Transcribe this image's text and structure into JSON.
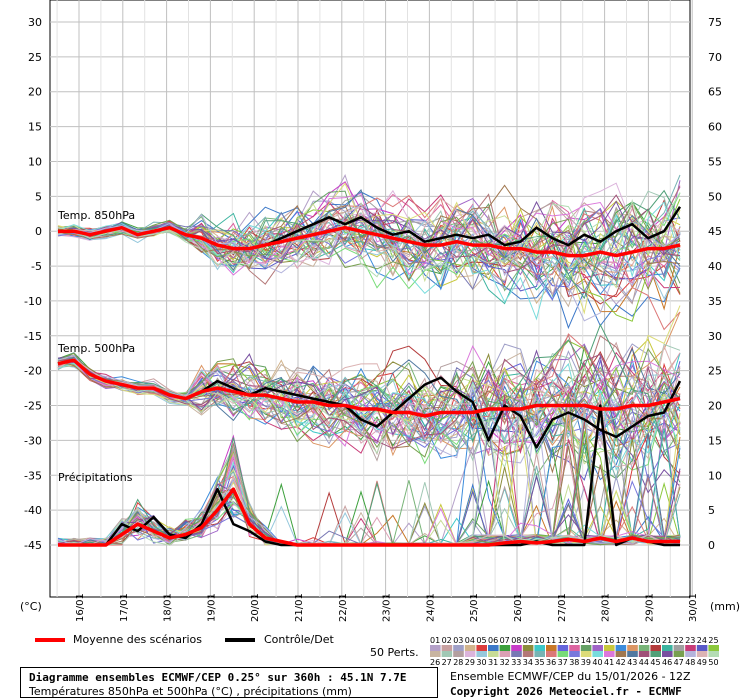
{
  "chart_data": {
    "type": "line",
    "left_unit": "(°C)",
    "right_unit": "(mm)",
    "left_ticks": [
      30,
      25,
      20,
      15,
      10,
      5,
      0,
      -5,
      -10,
      -15,
      -20,
      -25,
      -30,
      -35,
      -40,
      -45
    ],
    "right_ticks": [
      75,
      70,
      65,
      60,
      55,
      50,
      45,
      40,
      35,
      30,
      25,
      20,
      15,
      10,
      5,
      0
    ],
    "ylim_left": [
      -45,
      30
    ],
    "ylim_right": [
      0,
      75
    ],
    "x_dates": [
      "16/01",
      "17/01",
      "18/01",
      "19/01",
      "20/01",
      "21/01",
      "22/01",
      "23/01",
      "24/01",
      "25/01",
      "26/01",
      "27/01",
      "28/01",
      "29/01",
      "30/01"
    ],
    "panel_labels": [
      "Temp. 850hPa",
      "Temp. 500hPa",
      "Précipitations"
    ],
    "t850_mean": [
      0,
      0,
      -0.5,
      0,
      0.5,
      -0.5,
      0,
      0.5,
      -0.5,
      -1,
      -2,
      -2.5,
      -2.5,
      -2,
      -1.5,
      -1,
      -0.5,
      0,
      0.5,
      0,
      -0.5,
      -1,
      -1.5,
      -2,
      -2,
      -1.5,
      -2,
      -2,
      -2.5,
      -2.5,
      -3,
      -3,
      -3.5,
      -3.5,
      -3,
      -3.5,
      -3,
      -2.5,
      -2.5,
      -2
    ],
    "t850_control": [
      0,
      0,
      -0.5,
      0,
      0.5,
      -0.5,
      0,
      0.5,
      -0.5,
      -1,
      -2,
      -2.5,
      -2.5,
      -2,
      -1,
      0,
      1,
      2,
      1,
      2,
      0.5,
      -0.5,
      0,
      -1.5,
      -1,
      -0.5,
      -1,
      -0.5,
      -2,
      -1.5,
      0.5,
      -1,
      -2,
      -0.5,
      -1.5,
      0,
      1,
      -1,
      0,
      3.5
    ],
    "t500_mean": [
      -19,
      -18.5,
      -20.5,
      -21.5,
      -22,
      -22.5,
      -22.5,
      -23.5,
      -24,
      -23,
      -22.5,
      -23,
      -23.5,
      -23.5,
      -24,
      -24.5,
      -24.5,
      -25,
      -25,
      -25.5,
      -25.5,
      -26,
      -26,
      -26.5,
      -26,
      -26,
      -26,
      -25.5,
      -25.5,
      -25.5,
      -25,
      -25,
      -25,
      -25,
      -25.5,
      -25.5,
      -25,
      -25,
      -24.5,
      -24
    ],
    "t500_control": [
      -19,
      -18.5,
      -20.5,
      -21.5,
      -22,
      -22.5,
      -22.5,
      -23.5,
      -24,
      -23,
      -21.5,
      -22.5,
      -23.5,
      -22.5,
      -23,
      -23.5,
      -24,
      -24.5,
      -25,
      -27,
      -28,
      -26,
      -24,
      -22,
      -21,
      -23,
      -24.5,
      -30,
      -25,
      -26.5,
      -31,
      -27,
      -26,
      -27,
      -28.5,
      -29.5,
      -28,
      -26.5,
      -26,
      -21.5
    ],
    "precip_mean": [
      0,
      0,
      0,
      0,
      1.5,
      3,
      2,
      1,
      1.5,
      2.5,
      5,
      8,
      3,
      1,
      0.5,
      0,
      0,
      0,
      0,
      0,
      0,
      0,
      0,
      0,
      0,
      0,
      0,
      0,
      0.3,
      0.5,
      0.3,
      0.5,
      0.8,
      0.5,
      1,
      0.5,
      1,
      0.5,
      0.5,
      0.5
    ],
    "precip_control": [
      0,
      0,
      0,
      0,
      3,
      2,
      4,
      1.5,
      1,
      3,
      8,
      3,
      2,
      0.5,
      0,
      0,
      0,
      0,
      0,
      0,
      0,
      0,
      0,
      0,
      0,
      0,
      0,
      0,
      0,
      0,
      0.5,
      0,
      0,
      0,
      20,
      0,
      1,
      0.5,
      0,
      0
    ],
    "members": 50,
    "colors": {
      "mean": "#ff0000",
      "control": "#000000",
      "grid": "#c0c0c0"
    }
  },
  "legend": {
    "mean_label": "Moyenne des scénarios",
    "control_label": "Contrôle/Det",
    "perts_label": "50 Perts.",
    "members_top": [
      "01",
      "02",
      "03",
      "04",
      "05",
      "06",
      "07",
      "08",
      "09",
      "10",
      "11",
      "12",
      "13",
      "14",
      "15",
      "16",
      "17",
      "18",
      "19",
      "20",
      "21",
      "22",
      "23",
      "24",
      "25"
    ],
    "members_bottom": [
      "26",
      "27",
      "28",
      "29",
      "30",
      "31",
      "32",
      "33",
      "34",
      "35",
      "36",
      "37",
      "38",
      "39",
      "40",
      "41",
      "42",
      "43",
      "44",
      "45",
      "46",
      "47",
      "48",
      "49",
      "50"
    ],
    "member_colors": [
      "#b4a0c8",
      "#c8a0a0",
      "#a0a0c8",
      "#d2b48c",
      "#dc3c3c",
      "#3c78c8",
      "#3ca03c",
      "#c83cc8",
      "#8c8c3c",
      "#3cc8c8",
      "#c87828",
      "#6464dc",
      "#dc64a0",
      "#64a064",
      "#a064c8",
      "#c8c83c",
      "#3c8cdc",
      "#dc9664",
      "#78b478",
      "#b43c3c",
      "#3cb4a0",
      "#a0a0a0",
      "#c83c78",
      "#5a5ac8",
      "#8cc83c",
      "#c8b4a0",
      "#a0c8b4",
      "#b4a0a0",
      "#dcb4dc",
      "#96c8dc",
      "#c8dc96",
      "#dca0b4",
      "#7878b4",
      "#b47878",
      "#78b4b4",
      "#dc7878",
      "#78dc78",
      "#7878dc",
      "#dcdc78",
      "#78dcdc",
      "#dc78dc",
      "#a07850",
      "#5078a0",
      "#a05078",
      "#50a078",
      "#7850a0",
      "#78a050",
      "#b4b4dc",
      "#dcb4b4",
      "#b4dcb4"
    ]
  },
  "footer": {
    "line1": "Diagramme ensembles ECMWF/CEP 0.25° sur 360h : 45.1N 7.7E",
    "line2": "Températures 850hPa et 500hPa (°C) , précipitations (mm)",
    "right1": "Ensemble ECMWF/CEP du 15/01/2026 - 12Z",
    "right2": "Copyright 2026 Meteociel.fr - ECMWF"
  }
}
